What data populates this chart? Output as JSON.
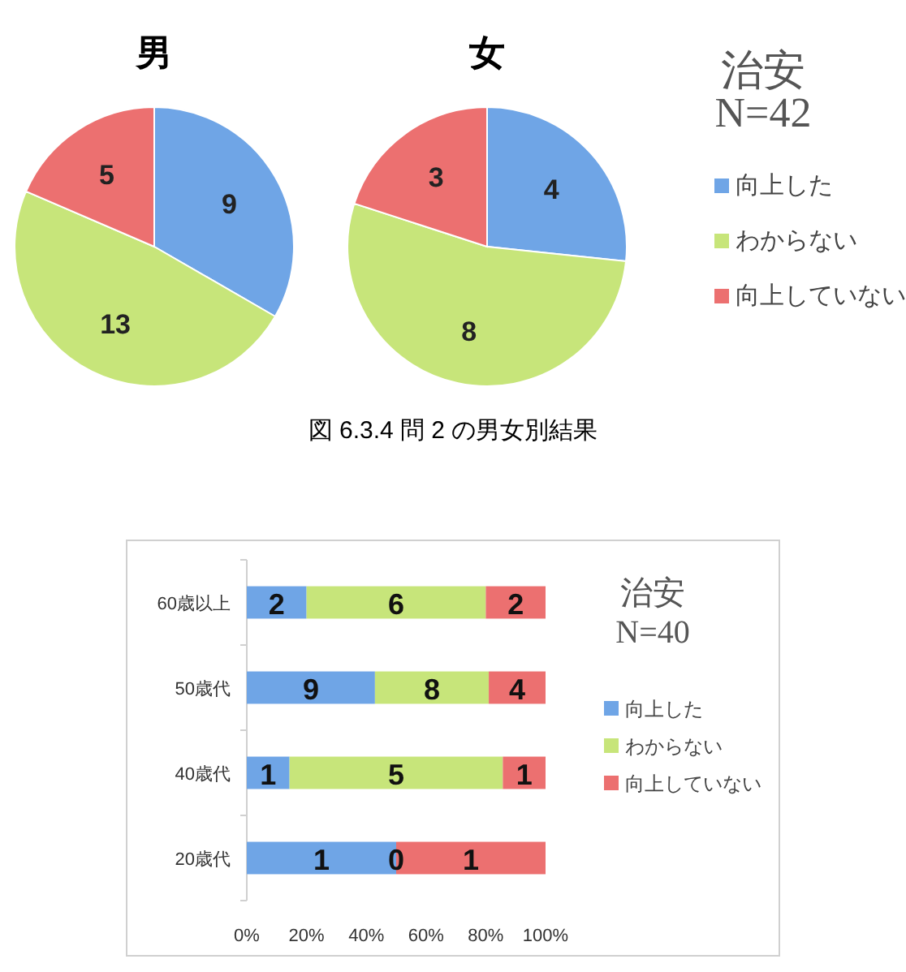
{
  "chart_data": [
    {
      "type": "pie",
      "title": "男",
      "categories": [
        null,
        null,
        null
      ],
      "values": [
        9,
        13,
        5
      ],
      "colors": [
        "#6fa5e6",
        "#c7e57a",
        "#ec7070"
      ],
      "data_labels": true
    },
    {
      "type": "pie",
      "title": "女",
      "categories": [
        "向上した",
        "わからない",
        "向上していない"
      ],
      "values": [
        4,
        8,
        3
      ],
      "colors": [
        "#6fa5e6",
        "#c7e57a",
        "#ec7070"
      ],
      "data_labels": true,
      "legend": "right",
      "legend_title": "治安",
      "annotations": [
        "N=42",
        "図 6.3.4  問 2 の男女別結果"
      ]
    },
    {
      "type": "bar",
      "orientation": "horizontal",
      "stacked": true,
      "categories": [
        "60歳以上",
        "50歳代",
        "40歳代",
        "20歳代"
      ],
      "series": [
        {
          "name": "向上した",
          "color": "#6fa5e6",
          "values": [
            20,
            42.9,
            14.3,
            50
          ]
        },
        {
          "name": "わからない",
          "color": "#c7e57a",
          "values": [
            60,
            38.1,
            71.4,
            0
          ]
        },
        {
          "name": "向上していない",
          "color": "#ec7070",
          "values": [
            20,
            19.0,
            14.3,
            50
          ]
        }
      ],
      "xlim": [
        0,
        100
      ],
      "xticks": [
        {
          "value": 0,
          "label": "0%"
        },
        {
          "value": 20,
          "label": "20%"
        },
        {
          "value": 40,
          "label": "40%"
        },
        {
          "value": 60,
          "label": "60%"
        },
        {
          "value": 80,
          "label": "80%"
        },
        {
          "value": 100,
          "label": "100%"
        }
      ],
      "legend": "right",
      "legend_title": "治安",
      "annotations": [
        "N=40",
        "2",
        "9",
        "1",
        "1",
        "6",
        "8",
        "5",
        "0",
        "2",
        "4",
        "1",
        "1"
      ]
    }
  ]
}
